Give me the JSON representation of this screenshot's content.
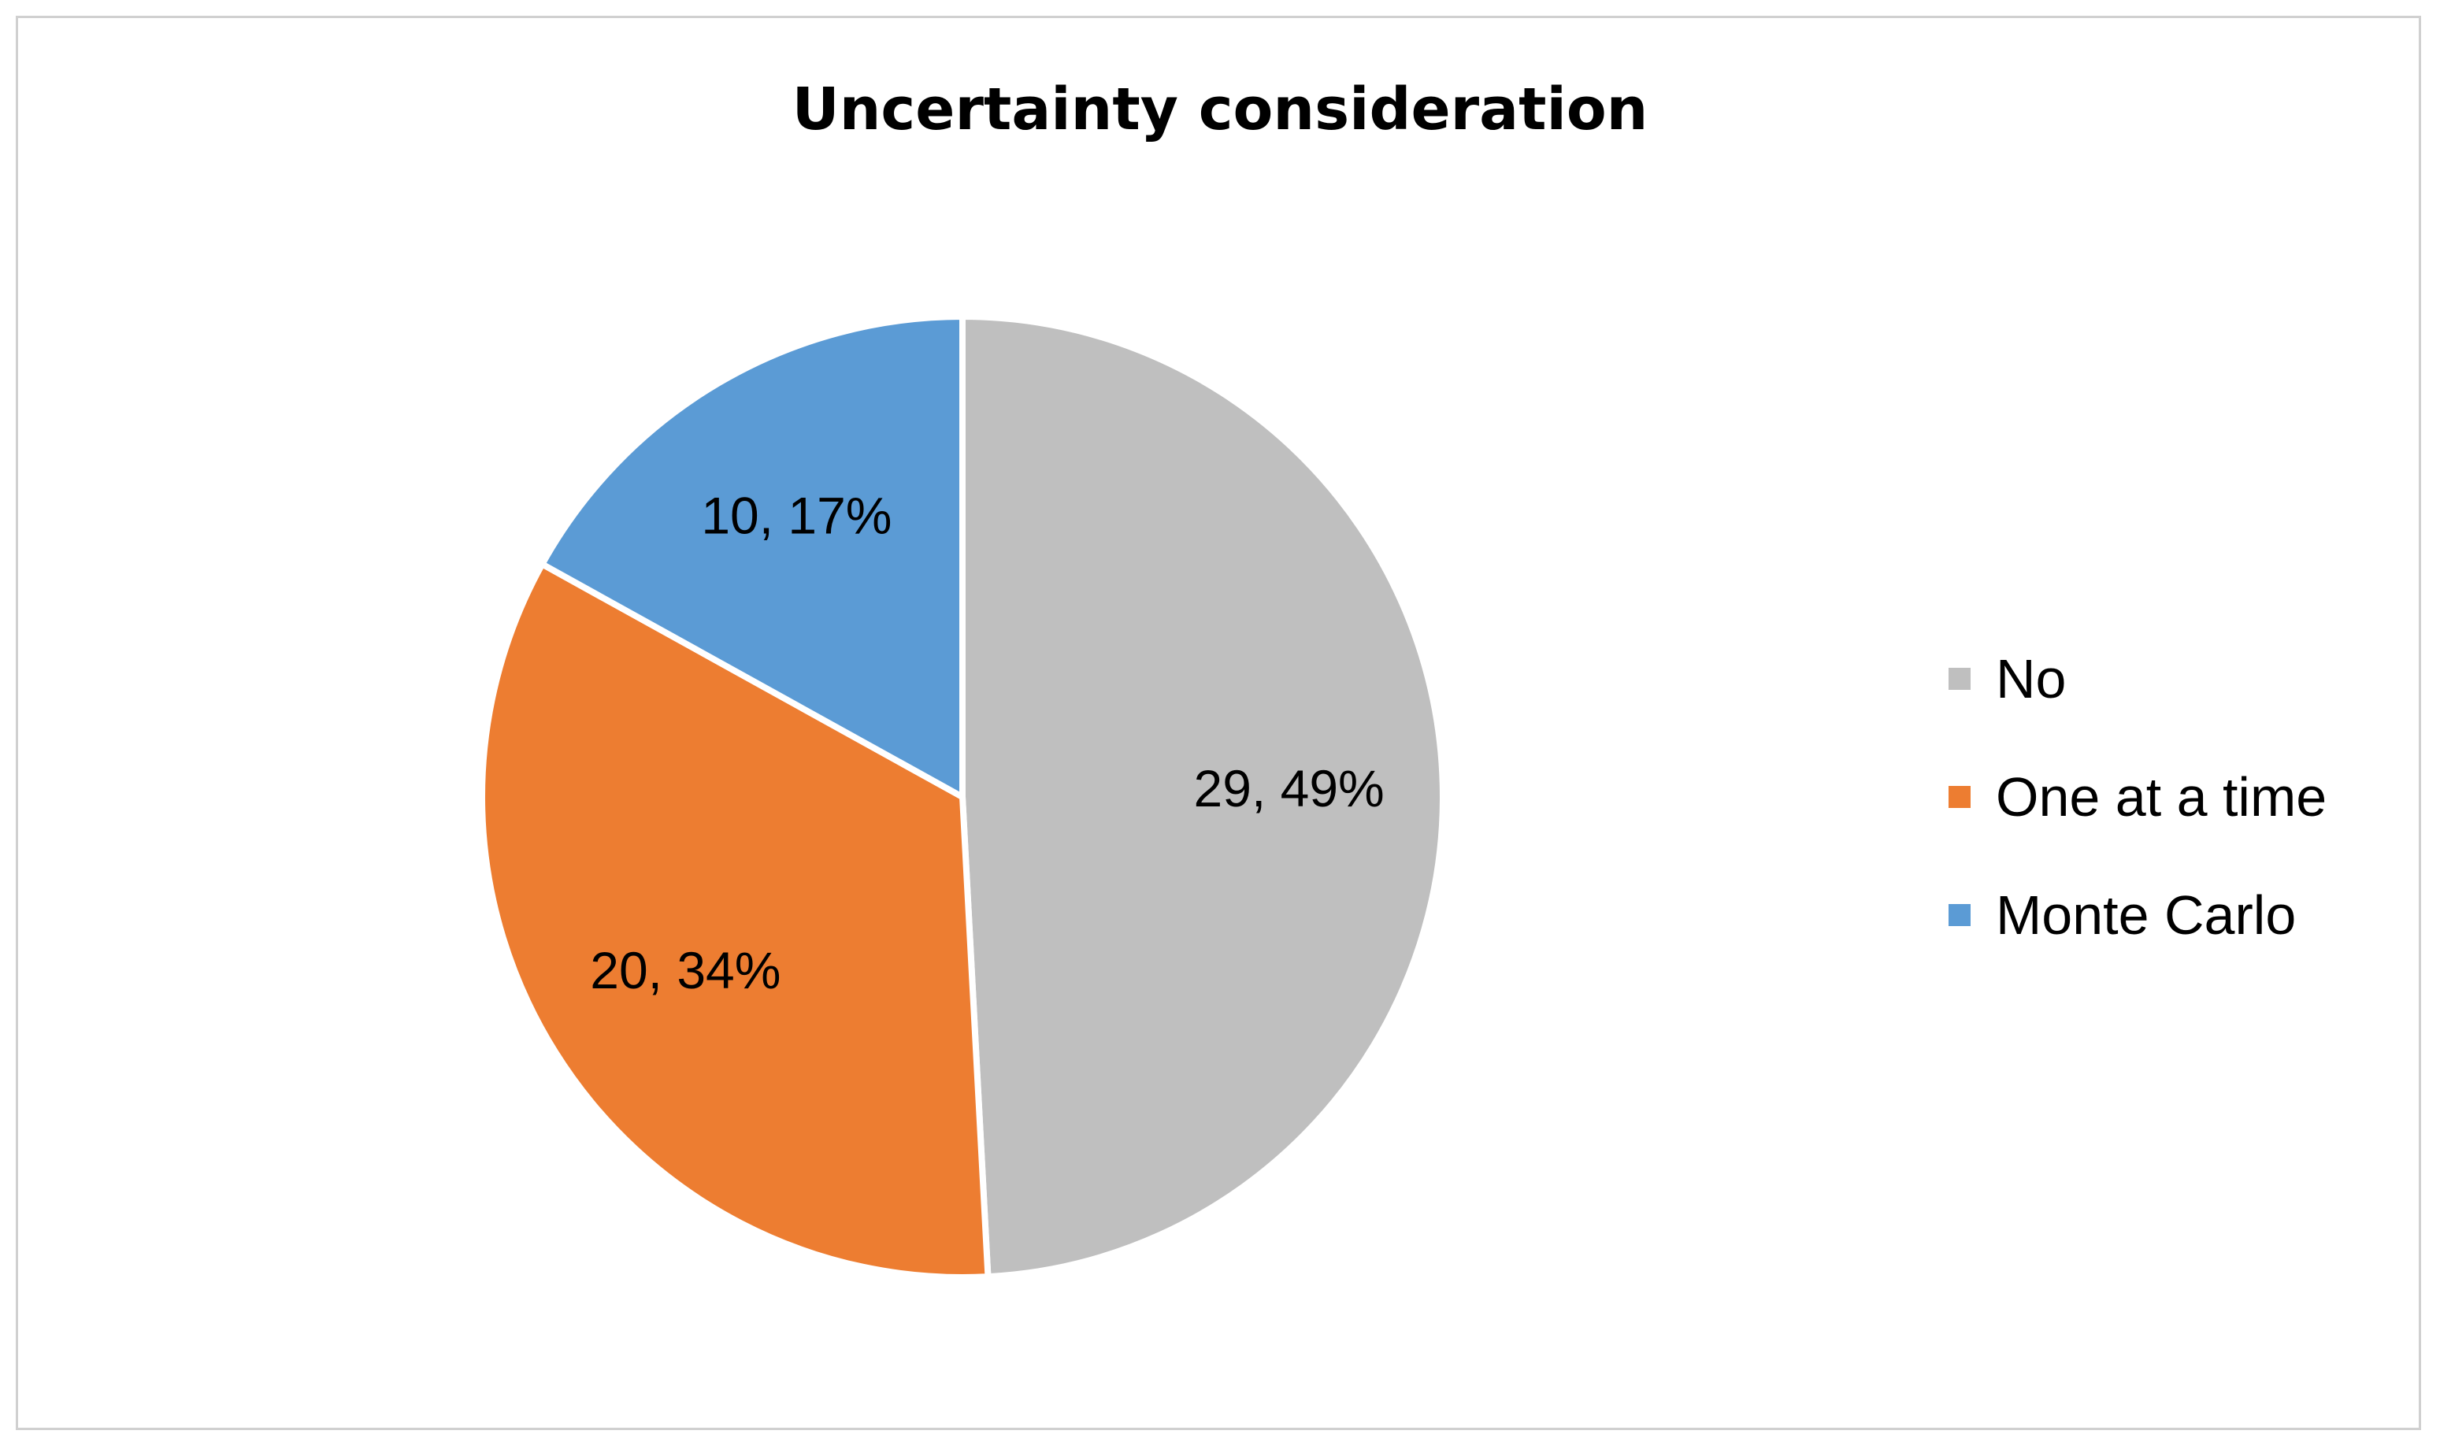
{
  "chart_data": {
    "type": "pie",
    "title": "Uncertainty consideration",
    "categories": [
      "No",
      "One at a time",
      "Monte Carlo"
    ],
    "values": [
      29,
      20,
      10
    ],
    "percentages": [
      "49%",
      "34%",
      "17%"
    ],
    "data_labels": [
      "29, 49%",
      "20, 34%",
      "10, 17%"
    ],
    "colors": [
      "#BFBFBF",
      "#ED7D31",
      "#5B9BD5"
    ],
    "legend_position": "right",
    "start": "12 o'clock",
    "direction": "clockwise"
  }
}
